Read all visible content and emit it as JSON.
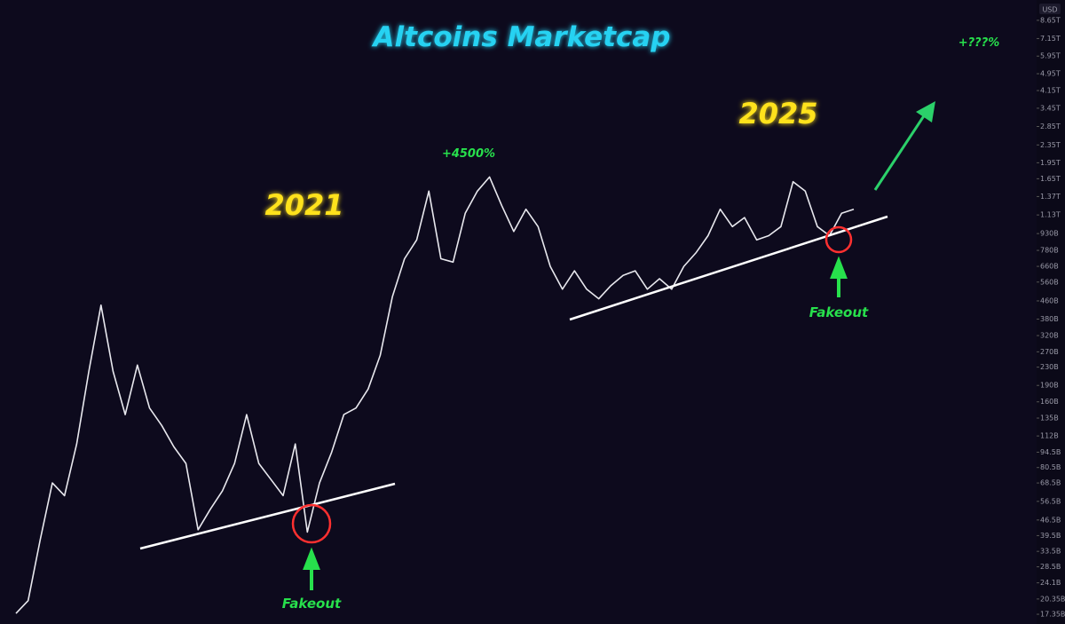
{
  "chart_data": {
    "type": "line",
    "title": "Altcoins Marketcap",
    "currency": "USD",
    "color": "#e8e8ee",
    "log": true,
    "grid": false,
    "values": [
      17500000000.0,
      20000000000.0,
      38000000000.0,
      68500000000.0,
      60000000000.0,
      103000000000.0,
      220000000000.0,
      440000000000.0,
      220000000000.0,
      140000000000.0,
      235000000000.0,
      150000000000.0,
      125000000000.0,
      100000000000.0,
      84000000000.0,
      42000000000.0,
      52000000000.0,
      63000000000.0,
      84000000000.0,
      140000000000.0,
      84000000000.0,
      71000000000.0,
      60000000000.0,
      103000000000.0,
      41000000000.0,
      68500000000.0,
      94500000000.0,
      140000000000.0,
      150000000000.0,
      183000000000.0,
      260000000000.0,
      480000000000.0,
      715000000000.0,
      870000000000.0,
      1450000000000.0,
      715000000000.0,
      690000000000.0,
      1150000000000.0,
      1450000000000.0,
      1680000000000.0,
      1250000000000.0,
      950000000000.0,
      1200000000000.0,
      1000000000000.0,
      660000000000.0,
      520000000000.0,
      630000000000.0,
      520000000000.0,
      470000000000.0,
      540000000000.0,
      600000000000.0,
      630000000000.0,
      520000000000.0,
      580000000000.0,
      520000000000.0,
      660000000000.0,
      760000000000.0,
      910000000000.0,
      1200000000000.0,
      1000000000000.0,
      1100000000000.0,
      870000000000.0,
      910000000000.0,
      1000000000000.0,
      1600000000000.0,
      1450000000000.0,
      1000000000000.0,
      910000000000.0,
      1150000000000.0,
      1200000000000.0
    ],
    "ylim": [
      15670000000.0,
      10700000000000.0
    ],
    "yticks": [
      {
        "value": 8650000000000.0,
        "label": "8.65T"
      },
      {
        "value": 7150000000000.0,
        "label": "7.15T"
      },
      {
        "value": 5950000000000.0,
        "label": "5.95T"
      },
      {
        "value": 4950000000000.0,
        "label": "4.95T"
      },
      {
        "value": 4150000000000.0,
        "label": "4.15T"
      },
      {
        "value": 3450000000000.0,
        "label": "3.45T"
      },
      {
        "value": 2850000000000.0,
        "label": "2.85T"
      },
      {
        "value": 2350000000000.0,
        "label": "2.35T"
      },
      {
        "value": 1950000000000.0,
        "label": "1.95T"
      },
      {
        "value": 1650000000000.0,
        "label": "1.65T"
      },
      {
        "value": 1370000000000.0,
        "label": "1.37T"
      },
      {
        "value": 1130000000000.0,
        "label": "1.13T"
      },
      {
        "value": 930000000000.0,
        "label": "930B"
      },
      {
        "value": 780000000000.0,
        "label": "780B"
      },
      {
        "value": 660000000000.0,
        "label": "660B"
      },
      {
        "value": 560000000000.0,
        "label": "560B"
      },
      {
        "value": 460000000000.0,
        "label": "460B"
      },
      {
        "value": 380000000000.0,
        "label": "380B"
      },
      {
        "value": 320000000000.0,
        "label": "320B"
      },
      {
        "value": 270000000000.0,
        "label": "270B"
      },
      {
        "value": 230000000000.0,
        "label": "230B"
      },
      {
        "value": 190000000000.0,
        "label": "190B"
      },
      {
        "value": 160000000000.0,
        "label": "160B"
      },
      {
        "value": 135000000000.0,
        "label": "135B"
      },
      {
        "value": 112000000000.0,
        "label": "112B"
      },
      {
        "value": 94500000000.0,
        "label": "94.5B"
      },
      {
        "value": 80500000000.0,
        "label": "80.5B"
      },
      {
        "value": 68500000000.0,
        "label": "68.5B"
      },
      {
        "value": 56500000000.0,
        "label": "56.5B"
      },
      {
        "value": 46500000000.0,
        "label": "46.5B"
      },
      {
        "value": 39500000000.0,
        "label": "39.5B"
      },
      {
        "value": 33500000000.0,
        "label": "33.5B"
      },
      {
        "value": 28500000000.0,
        "label": "28.5B"
      },
      {
        "value": 24100000000.0,
        "label": "24.1B"
      },
      {
        "value": 20350000000.0,
        "label": "20.35B"
      },
      {
        "value": 17350000000.0,
        "label": "17.35B"
      }
    ],
    "annotations": [
      "2021",
      "2025",
      "+4500%",
      "+???%",
      "Fakeout",
      "Fakeout"
    ]
  }
}
